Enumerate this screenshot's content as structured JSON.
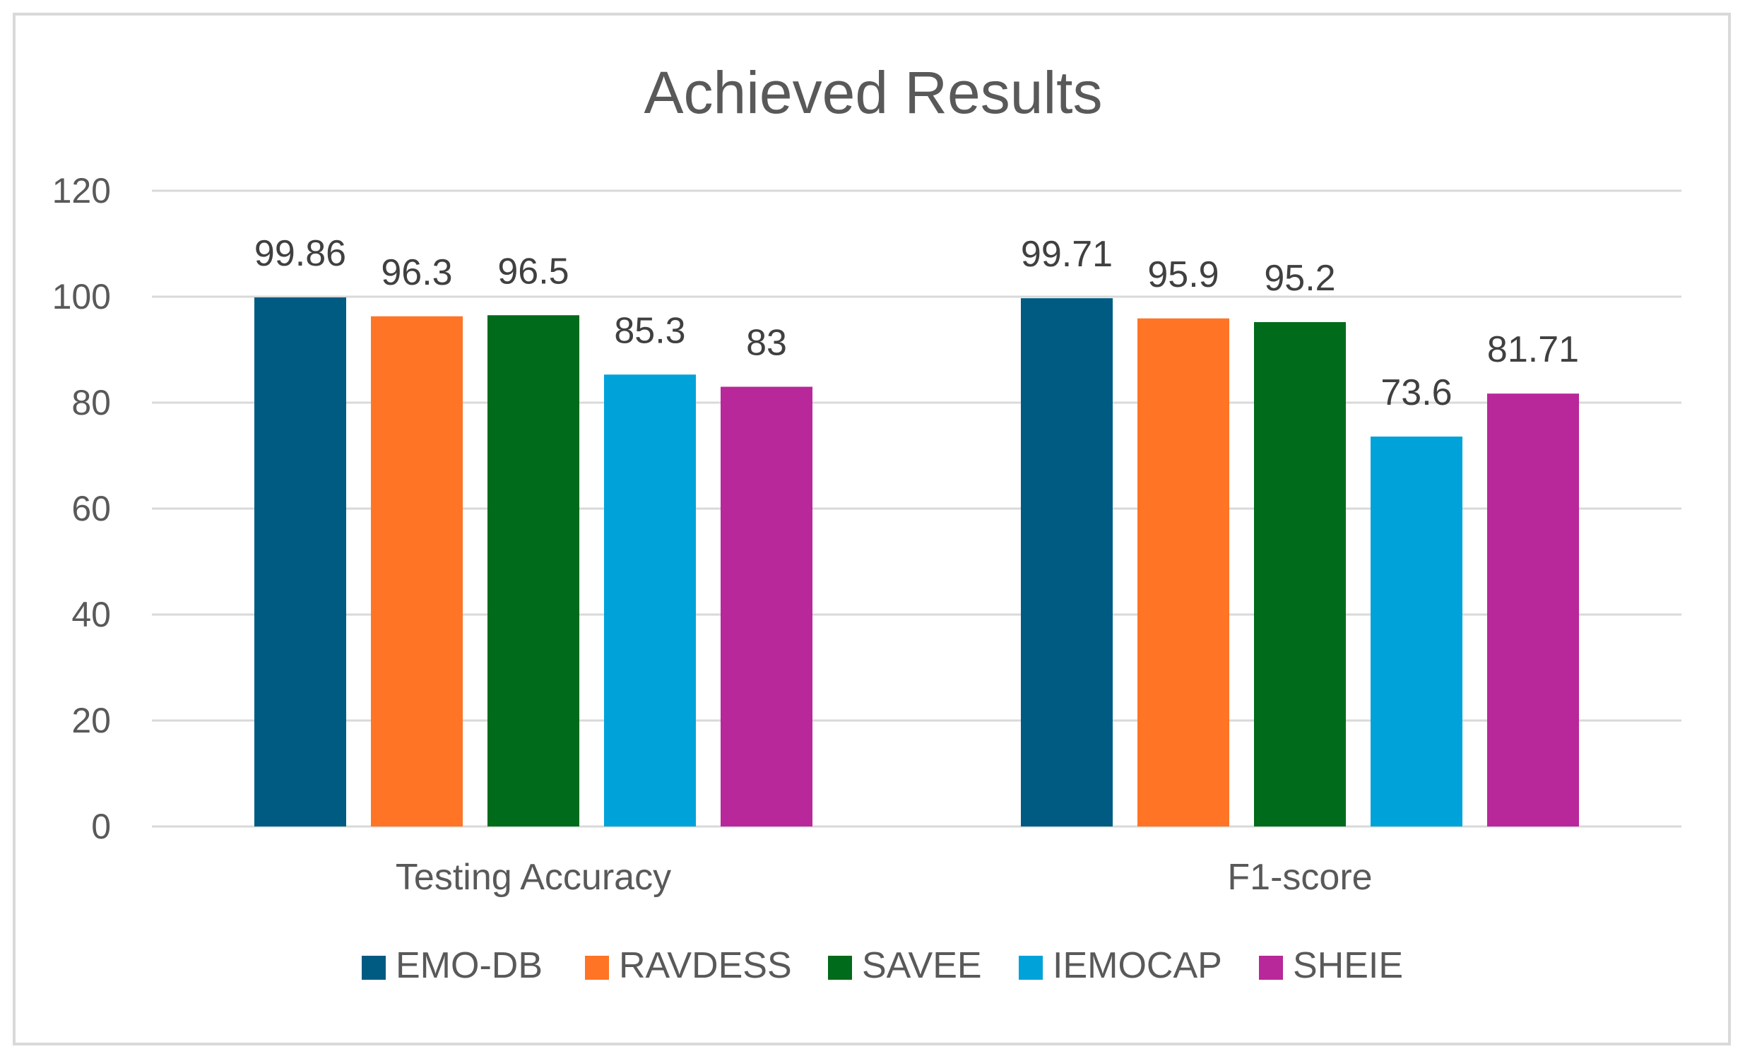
{
  "chart_data": {
    "type": "bar",
    "title": "Achieved Results",
    "categories": [
      "Testing Accuracy",
      "F1-score"
    ],
    "series": [
      {
        "name": "EMO-DB",
        "color": "#005B82",
        "values": [
          99.86,
          99.71
        ],
        "labels": [
          "99.86",
          "99.71"
        ]
      },
      {
        "name": "RAVDESS",
        "color": "#FF7425",
        "values": [
          96.3,
          95.9
        ],
        "labels": [
          "96.3",
          "95.9"
        ]
      },
      {
        "name": "SAVEE",
        "color": "#006B1B",
        "values": [
          96.5,
          95.2
        ],
        "labels": [
          "96.5",
          "95.2"
        ]
      },
      {
        "name": "IEMOCAP",
        "color": "#00A3D9",
        "values": [
          85.3,
          73.6
        ],
        "labels": [
          "85.3",
          "73.6"
        ]
      },
      {
        "name": "SHEIE",
        "color": "#B8289A",
        "values": [
          83,
          81.71
        ],
        "labels": [
          "83",
          "81.71"
        ]
      }
    ],
    "ylim": [
      0,
      120
    ],
    "yticks": [
      "0",
      "20",
      "40",
      "60",
      "80",
      "100",
      "120"
    ],
    "grid": true,
    "legend_position": "bottom",
    "xlabel": "",
    "ylabel": ""
  }
}
